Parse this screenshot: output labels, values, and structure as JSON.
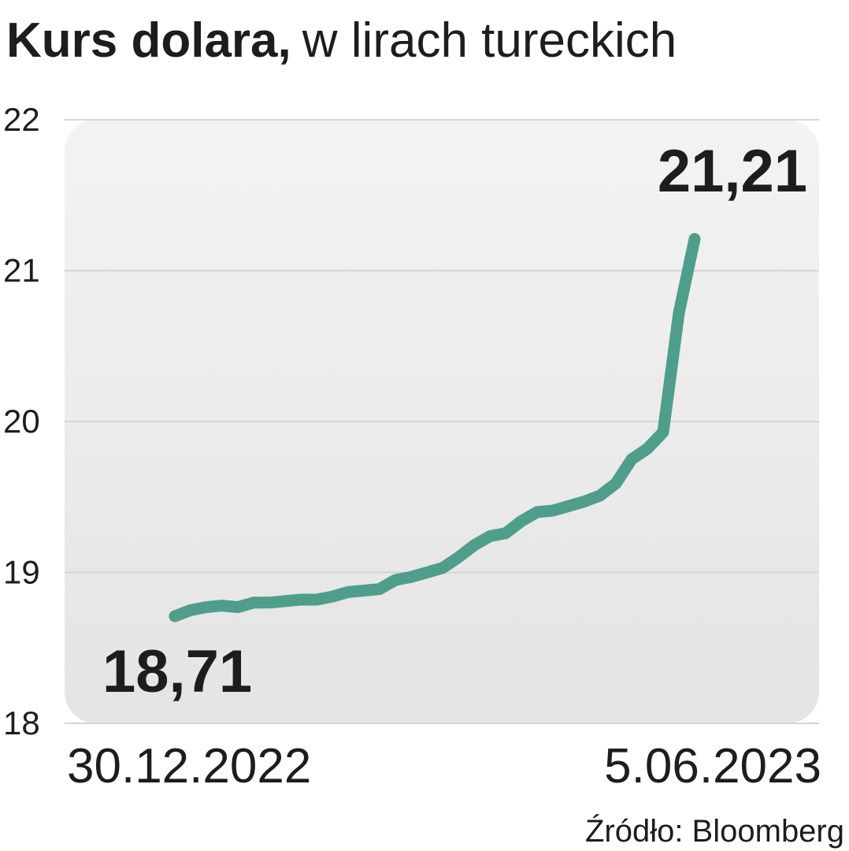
{
  "chart_data": {
    "type": "line",
    "title": "Kurs dolara,",
    "subtitle": "w lirach tureckich",
    "source": "Źródło: Bloomberg",
    "categories": [
      "30.12.2022",
      null,
      null,
      null,
      null,
      null,
      null,
      null,
      null,
      null,
      null,
      null,
      null,
      null,
      null,
      null,
      null,
      null,
      null,
      null,
      null,
      null,
      null,
      null,
      null,
      null,
      null,
      null,
      null,
      null,
      null,
      null,
      null,
      "5.06.2023"
    ],
    "series": [
      {
        "name": null,
        "color": "#4f9e8b",
        "values": [
          18.71,
          18.75,
          18.77,
          18.78,
          18.77,
          18.8,
          18.8,
          18.81,
          18.82,
          18.82,
          18.84,
          18.87,
          18.88,
          18.89,
          18.95,
          18.97,
          19.0,
          19.03,
          19.1,
          19.18,
          19.24,
          19.26,
          19.34,
          19.4,
          19.41,
          19.44,
          19.47,
          19.51,
          19.59,
          19.75,
          19.82,
          19.93,
          20.72,
          21.21
        ],
        "value_labels": [
          "18,71",
          null,
          null,
          null,
          null,
          null,
          null,
          null,
          null,
          null,
          null,
          null,
          null,
          null,
          null,
          null,
          null,
          null,
          null,
          null,
          null,
          null,
          null,
          null,
          null,
          null,
          null,
          null,
          null,
          null,
          null,
          null,
          null,
          "21,21"
        ]
      }
    ],
    "ylim": [
      18,
      22
    ],
    "yticks": [
      18,
      19,
      20,
      21,
      22
    ],
    "grid": true
  }
}
